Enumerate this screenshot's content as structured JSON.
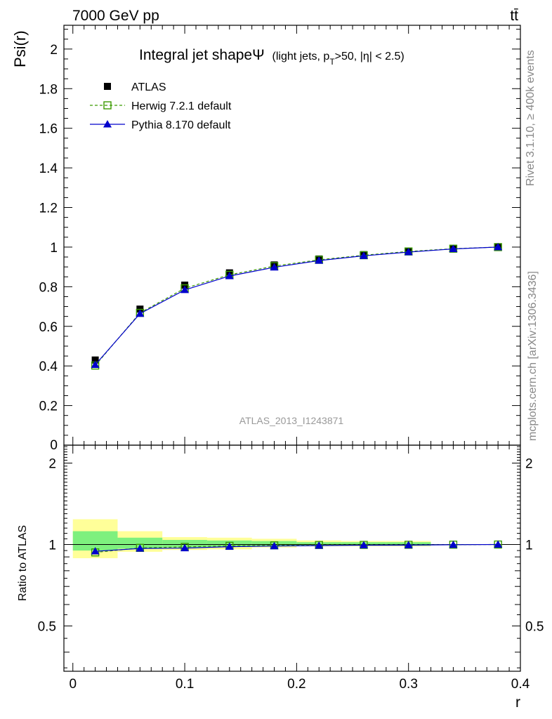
{
  "header": {
    "left": "7000 GeV pp",
    "right": "tt̄"
  },
  "side_labels": {
    "rivet": "Rivet 3.1.10, ≥ 400k events",
    "mcplots": "mcplots.cern.ch [arXiv:1306.3436]"
  },
  "watermark": "ATLAS_2013_I1243871",
  "colors": {
    "atlas": "#000000",
    "herwig": "#3a9a00",
    "pythia": "#0000cc",
    "band_inner": "#7ef07e",
    "band_outer": "#ffff99"
  },
  "chart_data": [
    {
      "type": "line",
      "title_main": "Integral jet shapeΨ",
      "title_detail": "(light jets, p",
      "title_sub": "T",
      "title_tail": ">50, |η| < 2.5)",
      "xlabel": "",
      "ylabel": "Psi(r)",
      "xlim": [
        -0.008,
        0.4
      ],
      "ylim": [
        0,
        2.12
      ],
      "y_ticks": [
        0.2,
        0.4,
        0.6,
        0.8,
        1,
        1.2,
        1.4,
        1.6,
        1.8,
        2
      ],
      "y_tick_labels": [
        "0.2",
        "0.4",
        "0.6",
        "0.8",
        "1",
        "1.2",
        "1.4",
        "1.6",
        "1.8",
        "2"
      ],
      "y_zero_label": "0",
      "legend_position": "top-left",
      "x": [
        0.02,
        0.06,
        0.1,
        0.14,
        0.18,
        0.22,
        0.26,
        0.3,
        0.34,
        0.38
      ],
      "series": [
        {
          "name": "ATLAS",
          "style": "points",
          "values": [
            0.43,
            0.687,
            0.808,
            0.87,
            0.91,
            0.94,
            0.962,
            0.98,
            0.993,
            1.0
          ]
        },
        {
          "name": "Herwig 7.2.1 default",
          "style": "dashed",
          "values": [
            0.402,
            0.668,
            0.792,
            0.86,
            0.904,
            0.936,
            0.959,
            0.978,
            0.992,
            1.0
          ]
        },
        {
          "name": "Pythia 8.170 default",
          "style": "solid",
          "values": [
            0.406,
            0.664,
            0.784,
            0.854,
            0.898,
            0.932,
            0.956,
            0.975,
            0.991,
            1.0
          ]
        }
      ]
    },
    {
      "type": "line",
      "title": "",
      "xlabel": "r",
      "ylabel": "Ratio to ATLAS",
      "xlim": [
        -0.008,
        0.4
      ],
      "ylim": [
        0.34,
        2.33
      ],
      "y_scale": "log",
      "y_ticks": [
        0.5,
        1,
        2
      ],
      "y_tick_labels": [
        "0.5",
        "1",
        "2"
      ],
      "x_ticks": [
        0,
        0.1,
        0.2,
        0.3,
        0.4
      ],
      "x_tick_labels": [
        "0",
        "0.1",
        "0.2",
        "0.3",
        "0.4"
      ],
      "x": [
        0.02,
        0.06,
        0.1,
        0.14,
        0.18,
        0.22,
        0.26,
        0.3,
        0.34,
        0.38
      ],
      "bands": {
        "bin_edges": [
          0.0,
          0.04,
          0.08,
          0.12,
          0.16,
          0.2,
          0.24,
          0.28,
          0.32,
          0.36,
          0.4
        ],
        "inner": [
          [
            0.95,
            1.12
          ],
          [
            0.965,
            1.06
          ],
          [
            0.975,
            1.04
          ],
          [
            0.98,
            1.035
          ],
          [
            0.985,
            1.03
          ],
          [
            0.99,
            1.02
          ],
          [
            0.99,
            1.02
          ],
          [
            0.99,
            1.02
          ],
          [
            1.0,
            1.0
          ],
          [
            1.0,
            1.0
          ]
        ],
        "outer": [
          [
            0.89,
            1.24
          ],
          [
            0.94,
            1.12
          ],
          [
            0.955,
            1.065
          ],
          [
            0.96,
            1.06
          ],
          [
            0.975,
            1.05
          ],
          [
            0.985,
            1.035
          ],
          [
            0.985,
            1.03
          ],
          [
            0.985,
            1.03
          ],
          [
            1.0,
            1.0
          ],
          [
            1.0,
            1.0
          ]
        ]
      },
      "series": [
        {
          "name": "Herwig 7.2.1 default",
          "style": "dashed",
          "values": [
            0.935,
            0.972,
            0.98,
            0.989,
            0.993,
            0.996,
            0.997,
            0.998,
            0.999,
            1.0
          ]
        },
        {
          "name": "Pythia 8.170 default",
          "style": "solid",
          "values": [
            0.944,
            0.967,
            0.97,
            0.982,
            0.987,
            0.991,
            0.994,
            0.995,
            0.998,
            1.0
          ]
        }
      ]
    }
  ]
}
